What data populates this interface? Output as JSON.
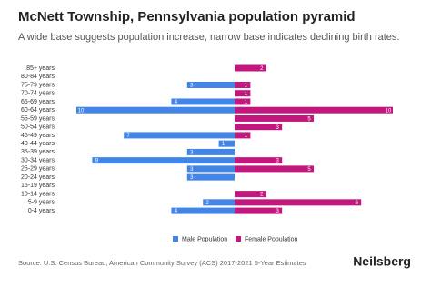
{
  "chart_data": {
    "type": "pyramid",
    "title": "McNett Township, Pennsylvania population pyramid",
    "subtitle": "A wide base suggests population increase, narrow base indicates declining birth rates.",
    "categories": [
      "85+ years",
      "80-84 years",
      "75-79 years",
      "70-74 years",
      "65-69 years",
      "60-64 years",
      "55-59 years",
      "50-54 years",
      "45-49 years",
      "40-44 years",
      "35-39 years",
      "30-34 years",
      "25-29 years",
      "20-24 years",
      "15-19 years",
      "10-14 years",
      "5-9 years",
      "0-4 years"
    ],
    "series": [
      {
        "name": "Male Population",
        "color": "#4285e6",
        "values": [
          0,
          0,
          3,
          0,
          4,
          10,
          0,
          0,
          7,
          1,
          3,
          9,
          3,
          3,
          0,
          0,
          2,
          4
        ]
      },
      {
        "name": "Female Population",
        "color": "#c2187e",
        "values": [
          2,
          0,
          1,
          1,
          1,
          10,
          5,
          3,
          1,
          0,
          0,
          3,
          5,
          0,
          0,
          2,
          8,
          3
        ]
      }
    ],
    "xlim": [
      0,
      10
    ],
    "source": "Source: U.S. Census Bureau, American Community Survey (ACS) 2017-2021 5-Year Estimates",
    "brand": "Neilsberg"
  }
}
